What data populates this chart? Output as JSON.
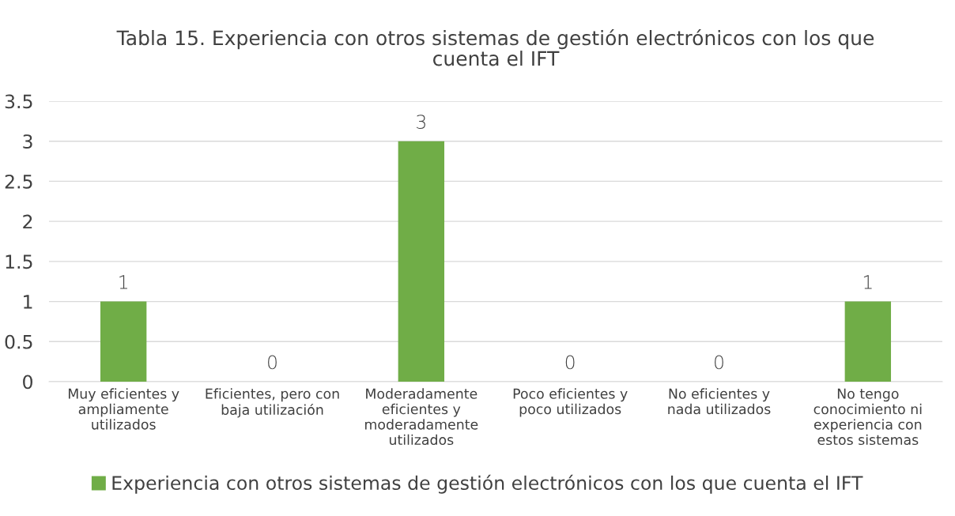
{
  "chart_data": {
    "type": "bar",
    "title": "Tabla 15. Experiencia con otros sistemas de gestión electrónicos con los que\ncuenta el IFT",
    "categories": [
      "Muy eficientes y\nampliamente\nutilizados",
      "Eficientes, pero con\nbaja utilización",
      "Moderadamente\neficientes y\nmoderadamente\nutilizados",
      "Poco eficientes y\npoco utilizados",
      "No eficientes y\nnada utilizados",
      "No tengo\nconocimiento ni\nexperiencia con\nestos sistemas"
    ],
    "series": [
      {
        "name": "Experiencia con otros sistemas de gestión electrónicos con los que cuenta el IFT",
        "color": "#70ad47",
        "values": [
          1,
          0,
          3,
          0,
          0,
          1
        ]
      }
    ],
    "ylim": [
      0,
      3.5
    ],
    "yticks": [
      0,
      0.5,
      1,
      1.5,
      2,
      2.5,
      3,
      3.5
    ],
    "grid": "y",
    "legend": "bottom",
    "data_labels": true
  }
}
